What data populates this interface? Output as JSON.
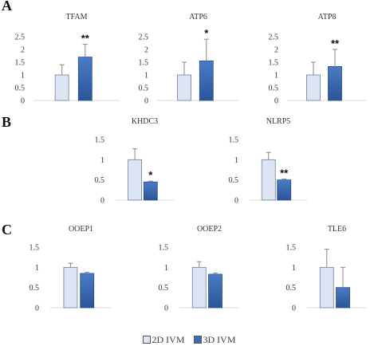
{
  "panels": {
    "a": "A",
    "b": "B",
    "c": "C"
  },
  "legend": {
    "items": [
      {
        "label": "2D IVM",
        "color": "#dde4f3"
      },
      {
        "label": "3D IVM",
        "color": "#3e6cb4"
      }
    ]
  },
  "colors": {
    "bar_2d": "#dde4f3",
    "bar_3d": "#3e6cb4",
    "bar_3d_dark": "#2a4f8e",
    "axis": "#d9d9d9",
    "error": "#888888"
  },
  "chart_data": [
    {
      "type": "bar",
      "panel": "A",
      "title": "TFAM",
      "categories": [
        "2D IVM",
        "3D IVM"
      ],
      "values": [
        1.0,
        1.7
      ],
      "errors": [
        0.4,
        0.5
      ],
      "significance": [
        "",
        "**"
      ],
      "yticks": [
        "0",
        "0.5",
        "1",
        "1.5",
        "2",
        "2.5"
      ],
      "ylim": [
        0,
        2.5
      ]
    },
    {
      "type": "bar",
      "panel": "A",
      "title": "ATP6",
      "categories": [
        "2D IVM",
        "3D IVM"
      ],
      "values": [
        1.0,
        1.55
      ],
      "errors": [
        0.5,
        0.85
      ],
      "significance": [
        "",
        "*"
      ],
      "yticks": [
        "0",
        "0.5",
        "1",
        "1.5",
        "2",
        "2.5"
      ],
      "ylim": [
        0,
        2.5
      ]
    },
    {
      "type": "bar",
      "panel": "A",
      "title": "ATP8",
      "categories": [
        "2D IVM",
        "3D IVM"
      ],
      "values": [
        1.0,
        1.33
      ],
      "errors": [
        0.5,
        0.67
      ],
      "significance": [
        "",
        "**"
      ],
      "yticks": [
        "0",
        "0.5",
        "1",
        "1.5",
        "2",
        "2.5"
      ],
      "ylim": [
        0,
        2.5
      ]
    },
    {
      "type": "bar",
      "panel": "B",
      "title": "KHDC3",
      "categories": [
        "2D IVM",
        "3D IVM"
      ],
      "values": [
        1.0,
        0.45
      ],
      "errors": [
        0.27,
        0.02
      ],
      "significance": [
        "",
        "*"
      ],
      "yticks": [
        "0",
        "0.5",
        "1",
        "1.5"
      ],
      "ylim": [
        0,
        1.5
      ]
    },
    {
      "type": "bar",
      "panel": "B",
      "title": "NLRP5",
      "categories": [
        "2D IVM",
        "3D IVM"
      ],
      "values": [
        1.0,
        0.5
      ],
      "errors": [
        0.18,
        0.02
      ],
      "significance": [
        "",
        "**"
      ],
      "yticks": [
        "0",
        "0.5",
        "1",
        "1.5"
      ],
      "ylim": [
        0,
        1.5
      ]
    },
    {
      "type": "bar",
      "panel": "C",
      "title": "OOEP1",
      "categories": [
        "2D IVM",
        "3D IVM"
      ],
      "values": [
        1.0,
        0.85
      ],
      "errors": [
        0.1,
        0.03
      ],
      "significance": [
        "",
        ""
      ],
      "yticks": [
        "0",
        "0.5",
        "1",
        "1.5"
      ],
      "ylim": [
        0,
        1.5
      ]
    },
    {
      "type": "bar",
      "panel": "C",
      "title": "OOEP2",
      "categories": [
        "2D IVM",
        "3D IVM"
      ],
      "values": [
        1.0,
        0.83
      ],
      "errors": [
        0.14,
        0.03
      ],
      "significance": [
        "",
        ""
      ],
      "yticks": [
        "0",
        "0.5",
        "1",
        "1.5"
      ],
      "ylim": [
        0,
        1.5
      ]
    },
    {
      "type": "bar",
      "panel": "C",
      "title": "TLE6",
      "categories": [
        "2D IVM",
        "3D IVM"
      ],
      "values": [
        1.0,
        0.5
      ],
      "errors": [
        0.45,
        0.5
      ],
      "significance": [
        "",
        ""
      ],
      "yticks": [
        "0",
        "0.5",
        "1",
        "1.5"
      ],
      "ylim": [
        0,
        1.5
      ]
    }
  ]
}
